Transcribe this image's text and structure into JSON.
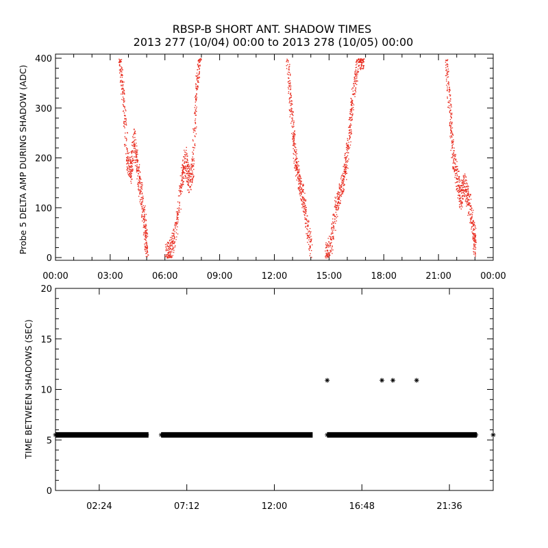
{
  "title_line1": "RBSP-B SHORT ANT. SHADOW TIMES",
  "title_line2": "2013 277 (10/04) 00:00 to 2013 278 (10/05) 00:00",
  "colors": {
    "top_series": "#e8291c",
    "bottom_series": "#000000",
    "axes": "#000000"
  },
  "chart_data": [
    {
      "type": "scatter",
      "xlabel": "",
      "ylabel": "Probe 5 DELTA AMP DURING SHADOW (ADC)",
      "xlim_hours": [
        0,
        24
      ],
      "ylim": [
        0,
        400
      ],
      "x_tick_labels": [
        "00:00",
        "03:00",
        "06:00",
        "09:00",
        "12:00",
        "15:00",
        "18:00",
        "21:00",
        "00:00"
      ],
      "y_tick_labels": [
        "0",
        "100",
        "200",
        "300",
        "400"
      ],
      "marker_color": "#e8291c",
      "series": [
        {
          "x_hours": [
            3.5,
            3.7,
            3.9,
            4.1,
            4.3,
            4.5,
            4.7,
            4.9,
            5.0,
            6.0,
            6.3,
            6.6,
            6.9,
            7.1,
            7.3,
            7.5,
            7.7,
            7.9,
            12.7,
            12.9,
            13.1,
            13.3,
            13.5,
            13.7,
            14.0,
            14.8,
            15.1,
            15.4,
            15.7,
            15.9,
            16.1,
            16.3,
            16.6,
            16.9,
            21.4,
            21.6,
            21.8,
            22.0,
            22.2,
            22.4,
            22.6,
            22.9,
            23.0
          ],
          "y": [
            400,
            330,
            200,
            170,
            240,
            170,
            120,
            60,
            10,
            5,
            15,
            60,
            160,
            200,
            150,
            180,
            330,
            400,
            400,
            300,
            210,
            160,
            130,
            90,
            15,
            5,
            30,
            110,
            140,
            190,
            250,
            340,
            400,
            400,
            400,
            300,
            200,
            160,
            120,
            150,
            120,
            60,
            15
          ]
        }
      ]
    },
    {
      "type": "scatter",
      "xlabel": "",
      "ylabel": "TIME BETWEEN SHADOWS (SEC)",
      "xlim_hours": [
        0,
        24
      ],
      "ylim": [
        0,
        20
      ],
      "x_tick_labels": [
        "02:24",
        "07:12",
        "12:00",
        "16:48",
        "21:36"
      ],
      "y_tick_labels": [
        "0",
        "5",
        "10",
        "15",
        "20"
      ],
      "marker": "*",
      "marker_color": "#000000",
      "series": [
        {
          "segments_y": 5.5,
          "segments_hours": [
            [
              0.0,
              5.1
            ],
            [
              5.8,
              14.1
            ],
            [
              14.9,
              23.1
            ]
          ],
          "extra_points": [
            {
              "x_hours": 14.9,
              "y": 10.9
            },
            {
              "x_hours": 17.9,
              "y": 10.9
            },
            {
              "x_hours": 18.5,
              "y": 10.9
            },
            {
              "x_hours": 19.8,
              "y": 10.9
            },
            {
              "x_hours": 24.0,
              "y": 5.5
            }
          ]
        }
      ]
    }
  ]
}
